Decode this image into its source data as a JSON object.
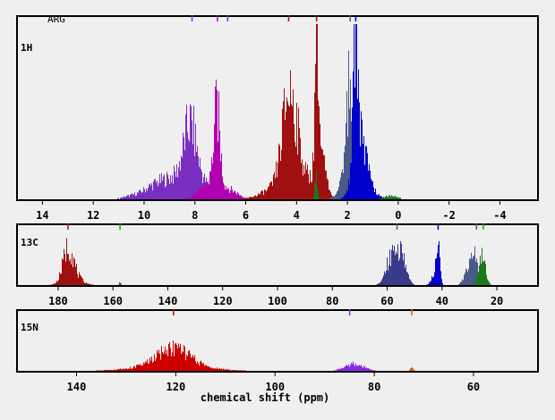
{
  "chart_data": {
    "type": "bar",
    "title": "ARG",
    "xlabel": "chemical shift (ppm)",
    "background": "#efefef",
    "panels": [
      {
        "label": "1H",
        "xlim": [
          15,
          -5.5
        ],
        "ticks": [
          14,
          12,
          10,
          8,
          6,
          4,
          2,
          0,
          -2,
          -4
        ],
        "markers": [
          {
            "x": 8.12,
            "color": "#8a2be2"
          },
          {
            "x": 7.12,
            "color": "#c000c0"
          },
          {
            "x": 6.72,
            "color": "#8a2be2"
          },
          {
            "x": 4.32,
            "color": "#a01010"
          },
          {
            "x": 3.22,
            "color": "#a01010"
          },
          {
            "x": 1.9,
            "color": "#4a5a8a"
          },
          {
            "x": 1.68,
            "color": "#0000cc"
          }
        ],
        "series": [
          {
            "color": "#7b2fc0",
            "peaks": [
              {
                "center": 8.4,
                "width": 0.9,
                "height": 0.14
              },
              {
                "center": 8.2,
                "width": 0.25,
                "height": 0.33
              },
              {
                "center": 9.6,
                "width": 0.5,
                "height": 0.04
              },
              {
                "center": 10.6,
                "width": 0.3,
                "height": 0.01
              }
            ]
          },
          {
            "color": "#b000b0",
            "peaks": [
              {
                "center": 7.15,
                "width": 0.12,
                "height": 0.46
              },
              {
                "center": 7.3,
                "width": 0.45,
                "height": 0.11
              },
              {
                "center": 6.5,
                "width": 0.3,
                "height": 0.03
              }
            ]
          },
          {
            "color": "#a01010",
            "peaks": [
              {
                "center": 4.3,
                "width": 0.28,
                "height": 0.5
              },
              {
                "center": 4.0,
                "width": 0.45,
                "height": 0.18
              },
              {
                "center": 5.0,
                "width": 0.5,
                "height": 0.05
              },
              {
                "center": 3.22,
                "width": 0.06,
                "height": 1.0
              },
              {
                "center": 3.1,
                "width": 0.2,
                "height": 0.3
              }
            ]
          },
          {
            "color": "#4a5a8a",
            "peaks": [
              {
                "center": 1.92,
                "width": 0.14,
                "height": 0.5
              },
              {
                "center": 1.8,
                "width": 0.35,
                "height": 0.22
              }
            ]
          },
          {
            "color": "#0000cc",
            "peaks": [
              {
                "center": 1.68,
                "width": 0.09,
                "height": 0.88
              },
              {
                "center": 1.55,
                "width": 0.25,
                "height": 0.35
              },
              {
                "center": 1.2,
                "width": 0.3,
                "height": 0.06
              }
            ]
          },
          {
            "color": "#1a7a1a",
            "peaks": [
              {
                "center": 3.25,
                "width": 0.05,
                "height": 0.15
              },
              {
                "center": 0.3,
                "width": 0.3,
                "height": 0.02
              }
            ]
          }
        ]
      },
      {
        "label": "13C",
        "xlim": [
          195,
          5
        ],
        "ticks": [
          180,
          160,
          140,
          120,
          100,
          80,
          60,
          40,
          20
        ],
        "markers": [
          {
            "x": 176.5,
            "color": "#a01010"
          },
          {
            "x": 157.5,
            "color": "#1a9a1a"
          },
          {
            "x": 56.5,
            "color": "#4a5a8a"
          },
          {
            "x": 41.5,
            "color": "#0000cc"
          },
          {
            "x": 27.5,
            "color": "#4a5a8a"
          },
          {
            "x": 25.0,
            "color": "#1a9a1a"
          }
        ],
        "series": [
          {
            "color": "#a01010",
            "peaks": [
              {
                "center": 176.5,
                "width": 1.8,
                "height": 0.62
              },
              {
                "center": 175.0,
                "width": 3.0,
                "height": 0.2
              }
            ]
          },
          {
            "color": "#3a3a8a",
            "peaks": [
              {
                "center": 57.0,
                "width": 2.2,
                "height": 0.68
              },
              {
                "center": 54.5,
                "width": 1.5,
                "height": 0.3
              },
              {
                "center": 60.0,
                "width": 1.5,
                "height": 0.2
              }
            ]
          },
          {
            "color": "#0000cc",
            "peaks": [
              {
                "center": 41.5,
                "width": 0.6,
                "height": 0.75
              },
              {
                "center": 43.0,
                "width": 1.0,
                "height": 0.28
              }
            ]
          },
          {
            "color": "#4a5a8a",
            "peaks": [
              {
                "center": 28.5,
                "width": 1.2,
                "height": 0.55
              },
              {
                "center": 30.5,
                "width": 1.5,
                "height": 0.3
              }
            ]
          },
          {
            "color": "#1a7a1a",
            "peaks": [
              {
                "center": 25.5,
                "width": 1.2,
                "height": 0.55
              },
              {
                "center": 157.5,
                "width": 0.3,
                "height": 0.08
              }
            ]
          }
        ]
      },
      {
        "label": "15N",
        "xlim": [
          152,
          47
        ],
        "ticks": [
          140,
          120,
          100,
          80,
          60
        ],
        "markers": [
          {
            "x": 120.5,
            "color": "#cc0000"
          },
          {
            "x": 85.0,
            "color": "#8a2be2"
          },
          {
            "x": 72.5,
            "color": "#e06000"
          }
        ],
        "series": [
          {
            "color": "#cc0000",
            "peaks": [
              {
                "center": 120.5,
                "width": 3.0,
                "height": 0.32
              },
              {
                "center": 121.0,
                "width": 6.0,
                "height": 0.15
              }
            ]
          },
          {
            "color": "#8a2be2",
            "peaks": [
              {
                "center": 85.0,
                "width": 1.5,
                "height": 0.1
              },
              {
                "center": 83.0,
                "width": 1.5,
                "height": 0.07
              }
            ]
          },
          {
            "color": "#e06000",
            "peaks": [
              {
                "center": 72.5,
                "width": 0.3,
                "height": 0.08
              }
            ]
          }
        ]
      }
    ]
  }
}
